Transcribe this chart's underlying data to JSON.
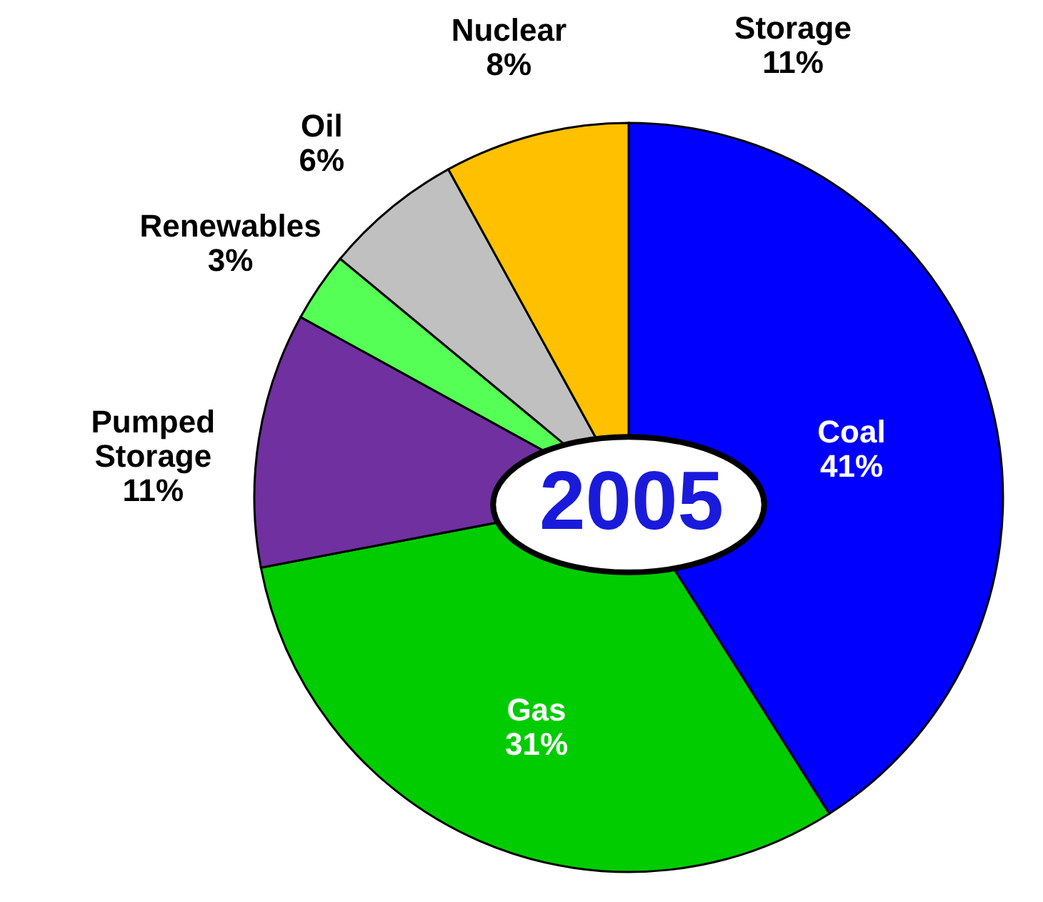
{
  "chart_data": {
    "type": "pie",
    "title": "2005",
    "categories": [
      "Coal",
      "Gas",
      "Pumped Storage",
      "Renewables",
      "Oil",
      "Nuclear"
    ],
    "values": [
      41,
      31,
      11,
      3,
      6,
      8
    ],
    "value_labels": [
      "41%",
      "31%",
      "11%",
      "3%",
      "6%",
      "8%"
    ],
    "colors": [
      "#0000ff",
      "#00cc00",
      "#7030a0",
      "#55ff55",
      "#c0c0c0",
      "#ffc000"
    ],
    "annotations": [
      "Storage 11%"
    ]
  }
}
